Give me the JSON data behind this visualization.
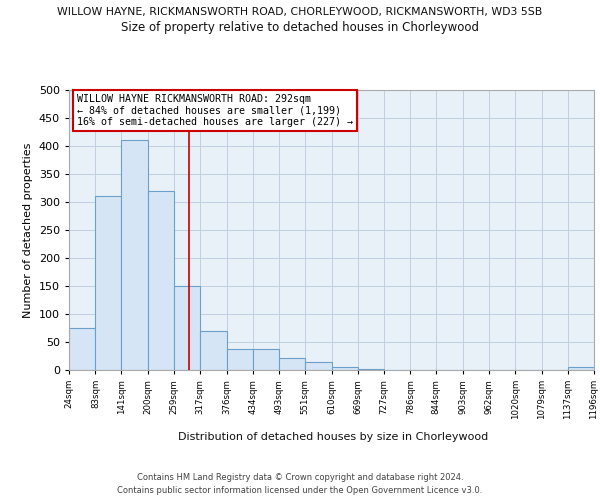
{
  "title_top": "WILLOW HAYNE, RICKMANSWORTH ROAD, CHORLEYWOOD, RICKMANSWORTH, WD3 5SB",
  "title_sub": "Size of property relative to detached houses in Chorleywood",
  "xlabel": "Distribution of detached houses by size in Chorleywood",
  "ylabel": "Number of detached properties",
  "bar_edges": [
    24,
    83,
    141,
    200,
    259,
    317,
    376,
    434,
    493,
    551,
    610,
    669,
    727,
    786,
    844,
    903,
    962,
    1020,
    1079,
    1137,
    1196
  ],
  "bar_heights": [
    75,
    310,
    410,
    320,
    150,
    70,
    37,
    37,
    22,
    14,
    6,
    1,
    0,
    0,
    0,
    0,
    0,
    0,
    0,
    5
  ],
  "bar_color": "#d6e5f5",
  "bar_edge_color": "#6ca0cc",
  "plot_bg_color": "#e8f0f8",
  "vline_x": 292,
  "vline_color": "#cc0000",
  "annotation_title": "WILLOW HAYNE RICKMANSWORTH ROAD: 292sqm",
  "annotation_line1": "← 84% of detached houses are smaller (1,199)",
  "annotation_line2": "16% of semi-detached houses are larger (227) →",
  "annotation_box_color": "#ffffff",
  "annotation_box_edge": "#cc0000",
  "ylim": [
    0,
    500
  ],
  "yticks": [
    0,
    50,
    100,
    150,
    200,
    250,
    300,
    350,
    400,
    450,
    500
  ],
  "tick_labels": [
    "24sqm",
    "83sqm",
    "141sqm",
    "200sqm",
    "259sqm",
    "317sqm",
    "376sqm",
    "434sqm",
    "493sqm",
    "551sqm",
    "610sqm",
    "669sqm",
    "727sqm",
    "786sqm",
    "844sqm",
    "903sqm",
    "962sqm",
    "1020sqm",
    "1079sqm",
    "1137sqm",
    "1196sqm"
  ],
  "footer1": "Contains HM Land Registry data © Crown copyright and database right 2024.",
  "footer2": "Contains public sector information licensed under the Open Government Licence v3.0.",
  "background_color": "#ffffff",
  "grid_color": "#c0cfe0"
}
